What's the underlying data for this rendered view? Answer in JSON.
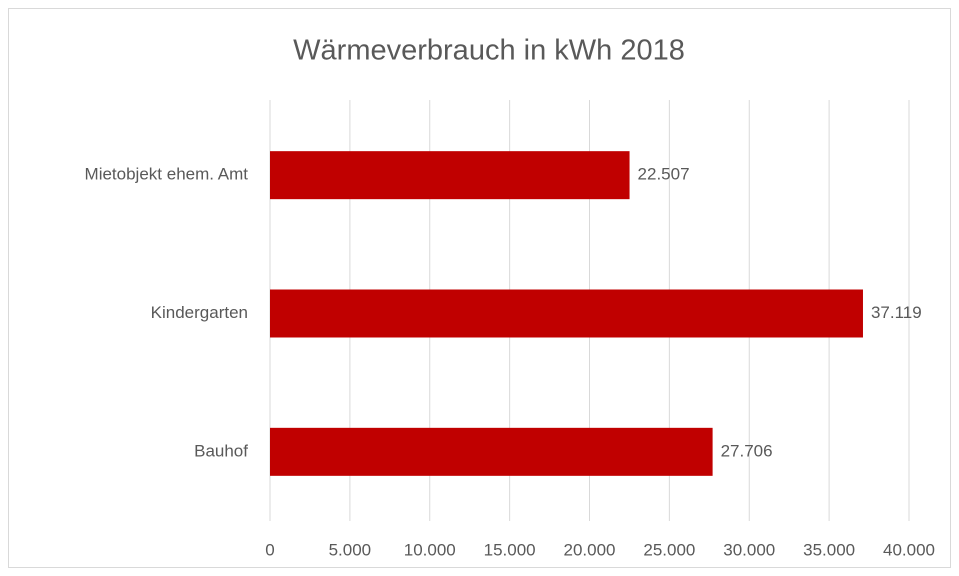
{
  "chart_data": {
    "type": "barh",
    "title": "Wärmeverbrauch in kWh 2018",
    "categories": [
      "Mietobjekt ehem. Amt",
      "Kindergarten",
      "Bauhof"
    ],
    "values": [
      22507,
      37119,
      27706
    ],
    "value_labels": [
      "22.507",
      "37.119",
      "27.706"
    ],
    "color": "#c00000",
    "xlim": [
      0,
      40000
    ],
    "xticks": [
      0,
      {
        "value": 5000,
        "label": "5.000"
      },
      {
        "value": 10000,
        "label": "10.000"
      },
      {
        "value": 15000,
        "label": "15.000"
      },
      {
        "value": 20000,
        "label": "20.000"
      },
      {
        "value": 25000,
        "label": "25.000"
      },
      {
        "value": 30000,
        "label": "30.000"
      },
      {
        "value": 35000,
        "label": "35.000"
      },
      {
        "value": 40000,
        "label": "40.000"
      }
    ],
    "grid": true
  }
}
